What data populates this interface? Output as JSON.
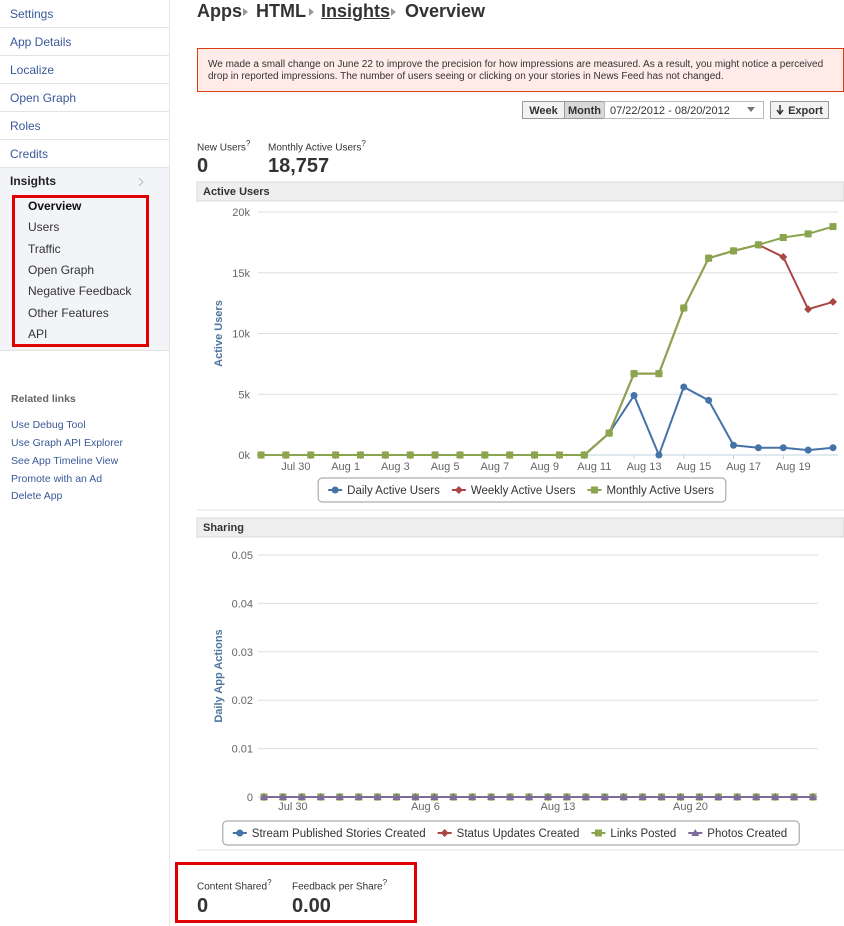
{
  "sidebar": {
    "nav": [
      "Settings",
      "App Details",
      "Localize",
      "Open Graph",
      "Roles",
      "Credits"
    ],
    "section": "Insights",
    "subnav": [
      "Overview",
      "Users",
      "Traffic",
      "Open Graph",
      "Negative Feedback",
      "Other Features",
      "API"
    ],
    "related_title": "Related links",
    "related": [
      "Use Debug Tool",
      "Use Graph API Explorer",
      "See App Timeline View",
      "Promote with an Ad",
      "Delete App"
    ]
  },
  "breadcrumb": [
    "Apps",
    "HTML",
    "Insights",
    "Overview"
  ],
  "notice": "We made a small change on June 22 to improve the precision for how impressions are measured. As a result, you might notice a perceived drop in reported impressions. The number of users seeing or clicking on your stories in News Feed has not changed.",
  "controls": {
    "week": "Week",
    "month": "Month",
    "date_range": "07/22/2012 - 08/20/2012",
    "export": "Export"
  },
  "help": "?",
  "stats": [
    {
      "label": "New Users",
      "value": "0"
    },
    {
      "label": "Monthly Active Users",
      "value": "18,757"
    }
  ],
  "bottom_stats": [
    {
      "label": "Content Shared",
      "value": "0"
    },
    {
      "label": "Feedback per Share",
      "value": "0.00"
    }
  ],
  "chart_data": [
    {
      "type": "line",
      "title": "Active Users",
      "y_label": "Active Users",
      "grid": true,
      "legend": "bottom",
      "categories": [
        null,
        "Jul 30",
        null,
        "Aug 1",
        null,
        "Aug 3",
        null,
        "Aug 5",
        null,
        "Aug 7",
        null,
        "Aug 9",
        null,
        "Aug 11",
        null,
        "Aug 13",
        null,
        "Aug 15",
        null,
        "Aug 17",
        null,
        "Aug 19",
        null,
        null
      ],
      "ylim": [
        0,
        20000
      ],
      "yticks": [
        {
          "value": 0,
          "label": "0k"
        },
        {
          "value": 5000,
          "label": "5k"
        },
        {
          "value": 10000,
          "label": "10k"
        },
        {
          "value": 15000,
          "label": "15k"
        },
        {
          "value": 20000,
          "label": "20k"
        }
      ],
      "series": [
        {
          "name": "Daily Active Users",
          "color": "#4572a7",
          "marker": "circle",
          "values": [
            0,
            0,
            0,
            0,
            0,
            0,
            0,
            0,
            0,
            0,
            0,
            0,
            0,
            0,
            1800,
            4900,
            0,
            5600,
            4500,
            800,
            600,
            600,
            400,
            600
          ]
        },
        {
          "name": "Weekly Active Users",
          "color": "#aa4643",
          "marker": "diamond",
          "values": [
            0,
            0,
            0,
            0,
            0,
            0,
            0,
            0,
            0,
            0,
            0,
            0,
            0,
            0,
            1800,
            6700,
            6700,
            12100,
            16200,
            16800,
            17300,
            16300,
            12000,
            12600
          ]
        },
        {
          "name": "Monthly Active Users",
          "color": "#89a54e",
          "marker": "square",
          "values": [
            0,
            0,
            0,
            0,
            0,
            0,
            0,
            0,
            0,
            0,
            0,
            0,
            0,
            0,
            1800,
            6700,
            6700,
            12100,
            16200,
            16800,
            17300,
            17900,
            18200,
            18800
          ]
        }
      ]
    },
    {
      "type": "line",
      "title": "Sharing",
      "y_label": "Daily App Actions",
      "grid": true,
      "legend": "bottom",
      "categories": [
        null,
        "Jul 30",
        null,
        null,
        null,
        null,
        null,
        null,
        "Aug 6",
        null,
        null,
        null,
        null,
        null,
        null,
        "Aug 13",
        null,
        null,
        null,
        null,
        null,
        null,
        "Aug 20",
        null,
        null,
        null,
        null,
        null,
        null,
        null
      ],
      "ylim": [
        0,
        0.05
      ],
      "yticks": [
        0,
        0.01,
        0.02,
        0.03,
        0.04,
        0.05
      ],
      "series": [
        {
          "name": "Stream Published Stories Created",
          "color": "#4572a7",
          "marker": "circle",
          "values": [
            0,
            0,
            0,
            0,
            0,
            0,
            0,
            0,
            0,
            0,
            0,
            0,
            0,
            0,
            0,
            0,
            0,
            0,
            0,
            0,
            0,
            0,
            0,
            0,
            0,
            0,
            0,
            0,
            0,
            0
          ]
        },
        {
          "name": "Status Updates Created",
          "color": "#aa4643",
          "marker": "diamond",
          "values": [
            0,
            0,
            0,
            0,
            0,
            0,
            0,
            0,
            0,
            0,
            0,
            0,
            0,
            0,
            0,
            0,
            0,
            0,
            0,
            0,
            0,
            0,
            0,
            0,
            0,
            0,
            0,
            0,
            0,
            0
          ]
        },
        {
          "name": "Links Posted",
          "color": "#89a54e",
          "marker": "square",
          "values": [
            0,
            0,
            0,
            0,
            0,
            0,
            0,
            0,
            0,
            0,
            0,
            0,
            0,
            0,
            0,
            0,
            0,
            0,
            0,
            0,
            0,
            0,
            0,
            0,
            0,
            0,
            0,
            0,
            0,
            0
          ]
        },
        {
          "name": "Photos Created",
          "color": "#80699b",
          "marker": "triangle",
          "values": [
            0,
            0,
            0,
            0,
            0,
            0,
            0,
            0,
            0,
            0,
            0,
            0,
            0,
            0,
            0,
            0,
            0,
            0,
            0,
            0,
            0,
            0,
            0,
            0,
            0,
            0,
            0,
            0,
            0,
            0
          ]
        }
      ]
    }
  ]
}
